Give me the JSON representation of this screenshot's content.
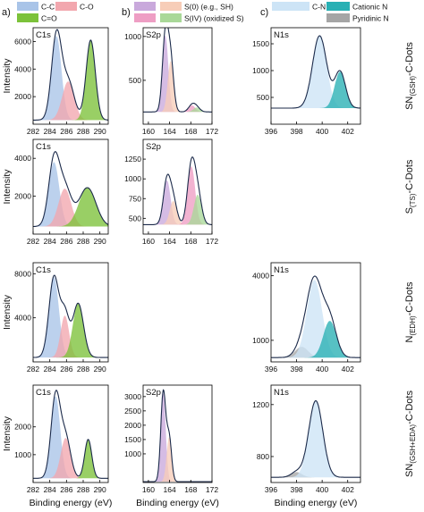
{
  "panel_letters": [
    "a)",
    "b)",
    "c)"
  ],
  "legends": {
    "a": [
      {
        "label": "C-C",
        "color": "#a9c4e8"
      },
      {
        "label": "C-O",
        "color": "#f2a7ae"
      },
      {
        "label": "C=O",
        "color": "#7cc23a"
      }
    ],
    "b": [
      {
        "label": "",
        "color": "#c9a9dc"
      },
      {
        "label": "S(0) (e.g., SH)",
        "color": "#f7cdb8"
      },
      {
        "label": "",
        "color": "#ee9ec4"
      },
      {
        "label": "S(IV) (oxidized S)",
        "color": "#a9d898"
      }
    ],
    "c": [
      {
        "label": "C-N",
        "color": "#cde4f6"
      },
      {
        "label": "Cationic N",
        "color": "#28b0b4"
      },
      {
        "label": "",
        "color": "#a5a5a5"
      },
      {
        "label": "Pyridinic N",
        "color": "#a5a5a5"
      }
    ]
  },
  "row_labels": [
    {
      "main": "SN",
      "sub": "(GSH)",
      "tail": "-C-Dots"
    },
    {
      "main": "S",
      "sub": "(TS)",
      "tail": "-C-Dots"
    },
    {
      "main": "N",
      "sub": "(EDH)",
      "tail": "-C-Dots"
    },
    {
      "main": "SN",
      "sub": "(GSH+EDA)",
      "tail": "-C-Dots"
    }
  ],
  "y_label": "Intensity",
  "x_label": "Binding energy (eV)",
  "chart_data": [
    {
      "type": "area",
      "row": 0,
      "col": 0,
      "title": "C1s",
      "xlim": [
        282,
        291
      ],
      "ylim": [
        0,
        7000
      ],
      "xticks": [
        282,
        284,
        286,
        288,
        290
      ],
      "yticks": [
        2000,
        4000,
        6000
      ],
      "baseline": 300,
      "peaks": [
        {
          "name": "C-C",
          "center": 284.8,
          "height": 6100,
          "fwhm": 1.4
        },
        {
          "name": "C-O",
          "center": 286.2,
          "height": 2800,
          "fwhm": 1.7
        },
        {
          "name": "C=O",
          "center": 288.9,
          "height": 5800,
          "fwhm": 1.3
        }
      ]
    },
    {
      "type": "area",
      "row": 0,
      "col": 1,
      "title": "S2p",
      "xlim": [
        159,
        172
      ],
      "ylim": [
        0,
        1100
      ],
      "xticks": [
        160,
        164,
        168,
        172
      ],
      "yticks": [
        500,
        1000
      ],
      "baseline": 140,
      "peaks": [
        {
          "name": "S(0) 2p3/2",
          "center": 163.2,
          "height": 870,
          "fwhm": 1.3
        },
        {
          "name": "S(0) 2p1/2",
          "center": 164.2,
          "height": 580,
          "fwhm": 1.3
        },
        {
          "name": "S(IV) 2p3/2",
          "center": 168.2,
          "height": 75,
          "fwhm": 1.5
        },
        {
          "name": "S(IV) 2p1/2",
          "center": 169.1,
          "height": 50,
          "fwhm": 1.5
        }
      ]
    },
    {
      "type": "area",
      "row": 0,
      "col": 2,
      "title": "N1s",
      "xlim": [
        396,
        403
      ],
      "ylim": [
        0,
        1800
      ],
      "xticks": [
        396,
        398,
        400,
        402
      ],
      "yticks": [
        500,
        1000,
        1500
      ],
      "baseline": 300,
      "peaks": [
        {
          "name": "C-N",
          "center": 399.8,
          "height": 1350,
          "fwhm": 1.3
        },
        {
          "name": "Cationic N",
          "center": 401.4,
          "height": 680,
          "fwhm": 1.0
        }
      ]
    },
    {
      "type": "area",
      "row": 1,
      "col": 0,
      "title": "C1s",
      "xlim": [
        282,
        291
      ],
      "ylim": [
        0,
        5000
      ],
      "xticks": [
        282,
        284,
        286,
        288,
        290
      ],
      "yticks": [
        2000,
        4000
      ],
      "baseline": 400,
      "peaks": [
        {
          "name": "C-C",
          "center": 284.5,
          "height": 3400,
          "fwhm": 1.5
        },
        {
          "name": "C-O",
          "center": 285.8,
          "height": 2000,
          "fwhm": 1.8
        },
        {
          "name": "C=O",
          "center": 288.5,
          "height": 2050,
          "fwhm": 2.4
        }
      ]
    },
    {
      "type": "area",
      "row": 1,
      "col": 1,
      "title": "S2p",
      "xlim": [
        159,
        172
      ],
      "ylim": [
        300,
        1500
      ],
      "xticks": [
        160,
        164,
        168,
        172
      ],
      "yticks": [
        500,
        750,
        1000,
        1250
      ],
      "baseline": 420,
      "peaks": [
        {
          "name": "S(0) 2p3/2",
          "center": 163.5,
          "height": 560,
          "fwhm": 1.6
        },
        {
          "name": "S(0) 2p1/2",
          "center": 164.7,
          "height": 300,
          "fwhm": 1.6
        },
        {
          "name": "S(IV) 2p3/2",
          "center": 168.1,
          "height": 740,
          "fwhm": 1.7
        },
        {
          "name": "S(IV) 2p1/2",
          "center": 169.3,
          "height": 380,
          "fwhm": 1.7
        }
      ]
    },
    {
      "type": "area",
      "row": 2,
      "col": 0,
      "title": "C1s",
      "xlim": [
        282,
        291
      ],
      "ylim": [
        0,
        9000
      ],
      "xticks": [
        282,
        284,
        286,
        288,
        290
      ],
      "yticks": [
        4000,
        8000
      ],
      "baseline": 400,
      "peaks": [
        {
          "name": "C-C",
          "center": 284.5,
          "height": 7300,
          "fwhm": 1.4
        },
        {
          "name": "C-O",
          "center": 285.8,
          "height": 3800,
          "fwhm": 1.2
        },
        {
          "name": "C=O",
          "center": 287.4,
          "height": 4900,
          "fwhm": 1.5
        }
      ]
    },
    {
      "type": "area",
      "row": 2,
      "col": 2,
      "title": "N1s",
      "xlim": [
        396,
        403
      ],
      "ylim": [
        0,
        4600
      ],
      "xticks": [
        396,
        398,
        400,
        402
      ],
      "yticks": [
        1000,
        4000
      ],
      "baseline": 200,
      "peaks": [
        {
          "name": "Pyridinic N",
          "center": 398.4,
          "height": 500,
          "fwhm": 1.2
        },
        {
          "name": "C-N",
          "center": 399.4,
          "height": 3600,
          "fwhm": 1.4
        },
        {
          "name": "Cationic N",
          "center": 400.6,
          "height": 1700,
          "fwhm": 1.2
        }
      ]
    },
    {
      "type": "area",
      "row": 3,
      "col": 0,
      "title": "C1s",
      "xlim": [
        282,
        291
      ],
      "ylim": [
        0,
        3500
      ],
      "xticks": [
        282,
        284,
        286,
        288,
        290
      ],
      "yticks": [
        1000,
        2000
      ],
      "baseline": 150,
      "peaks": [
        {
          "name": "C-C",
          "center": 284.7,
          "height": 2950,
          "fwhm": 1.3
        },
        {
          "name": "C-O",
          "center": 285.9,
          "height": 1450,
          "fwhm": 1.4
        },
        {
          "name": "C=O",
          "center": 288.6,
          "height": 1400,
          "fwhm": 1.0
        }
      ]
    },
    {
      "type": "area",
      "row": 3,
      "col": 1,
      "title": "S2p",
      "xlim": [
        159,
        172
      ],
      "ylim": [
        0,
        3400
      ],
      "xticks": [
        160,
        164,
        168,
        172
      ],
      "yticks": [
        1000,
        1500,
        2000,
        2500,
        3000
      ],
      "baseline": 30,
      "peaks": [
        {
          "name": "S(0) 2p3/2",
          "center": 162.8,
          "height": 3100,
          "fwhm": 1.1
        },
        {
          "name": "S(0) 2p1/2",
          "center": 163.9,
          "height": 1550,
          "fwhm": 1.1
        }
      ]
    },
    {
      "type": "area",
      "row": 3,
      "col": 2,
      "title": "N1s",
      "xlim": [
        396,
        403
      ],
      "ylim": [
        600,
        1350
      ],
      "xticks": [
        396,
        398,
        400,
        402
      ],
      "yticks": [
        800,
        1200
      ],
      "baseline": 640,
      "peaks": [
        {
          "name": "Pyridinic N",
          "center": 398.0,
          "height": 40,
          "fwhm": 1.0
        },
        {
          "name": "C-N",
          "center": 399.5,
          "height": 590,
          "fwhm": 1.3
        }
      ]
    }
  ]
}
